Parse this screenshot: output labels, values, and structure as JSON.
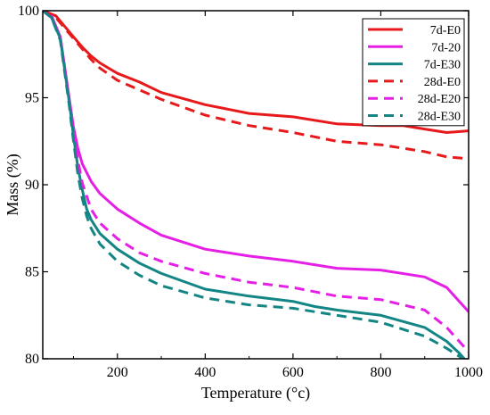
{
  "chart_data": {
    "type": "line",
    "title": "",
    "xlabel": "Temperature (°c)",
    "ylabel": "Mass (%)",
    "xlim": [
      30,
      1000
    ],
    "ylim": [
      80,
      100
    ],
    "xticks": [
      200,
      400,
      600,
      800,
      1000
    ],
    "yticks": [
      80,
      85,
      90,
      95,
      100
    ],
    "grid": false,
    "legend_position": "top-right",
    "series": [
      {
        "name": "7d-E0",
        "color": "#e8191b",
        "dash": "solid",
        "x": [
          30,
          60,
          80,
          100,
          120,
          140,
          160,
          200,
          250,
          300,
          400,
          500,
          600,
          700,
          800,
          850,
          900,
          950,
          1000
        ],
        "y": [
          100,
          99.7,
          99.1,
          98.5,
          97.9,
          97.4,
          97.0,
          96.4,
          95.9,
          95.3,
          94.6,
          94.1,
          93.9,
          93.5,
          93.4,
          93.4,
          93.2,
          93.0,
          93.1
        ]
      },
      {
        "name": "7d-20",
        "color": "#e51fe5",
        "dash": "solid",
        "x": [
          30,
          50,
          70,
          90,
          100,
          110,
          120,
          140,
          160,
          200,
          250,
          300,
          400,
          500,
          600,
          700,
          800,
          900,
          950,
          1000
        ],
        "y": [
          100,
          99.7,
          98.5,
          95.0,
          93.3,
          92.1,
          91.2,
          90.2,
          89.5,
          88.6,
          87.8,
          87.1,
          86.3,
          85.9,
          85.6,
          85.2,
          85.1,
          84.7,
          84.1,
          82.7
        ]
      },
      {
        "name": "7d-E30",
        "color": "#138585",
        "dash": "solid",
        "x": [
          30,
          50,
          70,
          90,
          100,
          110,
          120,
          130,
          140,
          160,
          200,
          250,
          300,
          400,
          500,
          600,
          650,
          700,
          800,
          900,
          950,
          980,
          1000
        ],
        "y": [
          100,
          99.6,
          98.4,
          94.8,
          92.8,
          91.0,
          89.7,
          88.6,
          88.0,
          87.2,
          86.3,
          85.5,
          84.9,
          84.0,
          83.6,
          83.3,
          83.0,
          82.8,
          82.5,
          81.8,
          81.0,
          80.3,
          79.7
        ]
      },
      {
        "name": "28d-E0",
        "color": "#e8191b",
        "dash": "dashed",
        "x": [
          30,
          60,
          80,
          100,
          120,
          140,
          160,
          200,
          300,
          400,
          500,
          600,
          700,
          800,
          900,
          950,
          1000
        ],
        "y": [
          100,
          99.6,
          99.0,
          98.4,
          97.8,
          97.2,
          96.7,
          96.0,
          94.9,
          94.0,
          93.4,
          93.0,
          92.5,
          92.3,
          91.9,
          91.6,
          91.5
        ]
      },
      {
        "name": "28d-E20",
        "color": "#e51fe5",
        "dash": "dashed",
        "x": [
          30,
          50,
          70,
          90,
          100,
          110,
          120,
          140,
          160,
          200,
          250,
          300,
          400,
          500,
          600,
          700,
          800,
          900,
          950,
          1000
        ],
        "y": [
          100,
          99.6,
          98.4,
          94.9,
          93.0,
          91.4,
          90.1,
          88.6,
          87.8,
          86.9,
          86.1,
          85.6,
          84.9,
          84.4,
          84.1,
          83.6,
          83.4,
          82.8,
          81.8,
          80.4
        ]
      },
      {
        "name": "28d-E30",
        "color": "#138585",
        "dash": "dashed",
        "x": [
          30,
          50,
          70,
          90,
          100,
          110,
          120,
          130,
          140,
          160,
          200,
          250,
          300,
          400,
          500,
          600,
          700,
          800,
          900,
          950,
          1000
        ],
        "y": [
          100,
          99.6,
          98.3,
          94.6,
          92.5,
          90.6,
          89.2,
          88.2,
          87.5,
          86.6,
          85.6,
          84.8,
          84.2,
          83.5,
          83.1,
          82.9,
          82.5,
          82.1,
          81.3,
          80.6,
          79.8
        ]
      }
    ]
  }
}
